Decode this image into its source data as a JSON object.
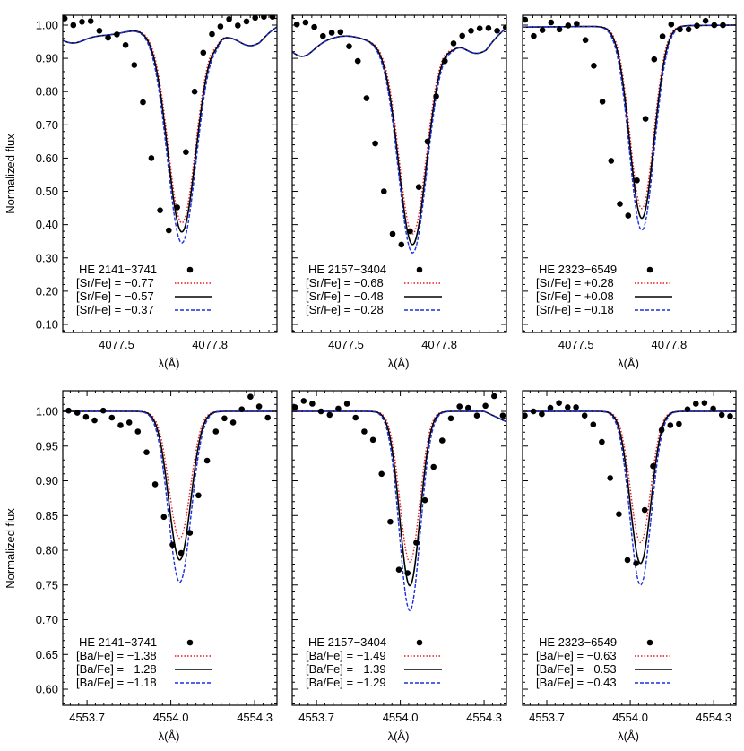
{
  "figure": {
    "ylabel": "Normalized flux",
    "xlabel": "λ(Å)",
    "rows": 2,
    "cols": 3
  },
  "colors": {
    "low_model": "#e8191e",
    "best_model": "#000000",
    "high_model": "#1a2ee0",
    "observed": "#000000",
    "frame": "#000000"
  },
  "chart_data": [
    {
      "type": "line",
      "panel": "top-left",
      "title": "",
      "xlabel": "λ(Å)",
      "ylabel": "Normalized flux",
      "xlim": [
        4077.327,
        4078.016
      ],
      "ylim": [
        0.0757,
        1.0296
      ],
      "xticks": [
        4077.5,
        4077.8
      ],
      "xtick_labels": [
        "4077.5",
        "4077.8"
      ],
      "yticks": [
        0.1,
        0.2,
        0.3,
        0.4,
        0.5,
        0.6,
        0.7,
        0.8,
        0.9,
        1.0
      ],
      "ytick_labels": [
        "0.10",
        "0.20",
        "0.30",
        "0.40",
        "0.50",
        "0.60",
        "0.70",
        "0.80",
        "0.90",
        "1.00"
      ],
      "line": {
        "center": 4077.71,
        "sigma": 0.066,
        "continuum": "sr1"
      },
      "legend": {
        "star": "HE 2141−3741",
        "entries": [
          "[Sr/Fe] = −0.77",
          "[Sr/Fe] = −0.57",
          "[Sr/Fe] = −0.37"
        ]
      },
      "series": [
        {
          "name": "[Sr/Fe] = −0.77",
          "style": "dotted",
          "color": "#e8191e",
          "min_flux": 0.405
        },
        {
          "name": "[Sr/Fe] = −0.57",
          "style": "solid",
          "color": "#000000",
          "min_flux": 0.378
        },
        {
          "name": "[Sr/Fe] = −0.37",
          "style": "dashed",
          "color": "#1a2ee0",
          "min_flux": 0.345
        }
      ],
      "observed": {
        "name": "HE 2141−3741",
        "x": [
          4077.333,
          4077.361,
          4077.389,
          4077.417,
          4077.445,
          4077.473,
          4077.501,
          4077.529,
          4077.557,
          4077.585,
          4077.612,
          4077.64,
          4077.668,
          4077.695,
          4077.723,
          4077.751,
          4077.779,
          4077.807,
          4077.834,
          4077.862,
          4077.89,
          4077.918,
          4077.946,
          4077.974,
          4078.002
        ],
        "y": [
          1.02,
          1.0,
          1.01,
          1.012,
          0.983,
          0.962,
          0.972,
          0.94,
          0.88,
          0.768,
          0.6,
          0.443,
          0.383,
          0.452,
          0.618,
          0.8,
          0.917,
          0.973,
          0.996,
          1.018,
          0.999,
          1.011,
          1.022,
          1.025,
          1.025
        ]
      }
    },
    {
      "type": "line",
      "panel": "top-middle",
      "title": "",
      "xlabel": "λ(Å)",
      "ylabel": "",
      "xlim": [
        4077.327,
        4078.016
      ],
      "ylim": [
        0.0757,
        1.0296
      ],
      "xticks": [
        4077.5,
        4077.8
      ],
      "xtick_labels": [
        "4077.5",
        "4077.8"
      ],
      "yticks": [
        0.1,
        0.2,
        0.3,
        0.4,
        0.5,
        0.6,
        0.7,
        0.8,
        0.9,
        1.0
      ],
      "line": {
        "center": 4077.714,
        "sigma": 0.066,
        "continuum": "sr2"
      },
      "legend": {
        "star": "HE 2157−3404",
        "entries": [
          "[Sr/Fe] = −0.68",
          "[Sr/Fe] = −0.48",
          "[Sr/Fe] = −0.28"
        ]
      },
      "series": [
        {
          "name": "[Sr/Fe] = −0.68",
          "style": "dotted",
          "color": "#e8191e",
          "min_flux": 0.372
        },
        {
          "name": "[Sr/Fe] = −0.48",
          "style": "solid",
          "color": "#000000",
          "min_flux": 0.34
        },
        {
          "name": "[Sr/Fe] = −0.28",
          "style": "dashed",
          "color": "#1a2ee0",
          "min_flux": 0.315
        }
      ],
      "observed": {
        "name": "HE 2157−3404",
        "x": [
          4077.342,
          4077.37,
          4077.398,
          4077.426,
          4077.454,
          4077.482,
          4077.51,
          4077.538,
          4077.566,
          4077.594,
          4077.622,
          4077.65,
          4077.678,
          4077.706,
          4077.734,
          4077.762,
          4077.79,
          4077.818,
          4077.846,
          4077.874,
          4077.902,
          4077.93,
          4077.958,
          4077.986,
          4078.014
        ],
        "y": [
          1.002,
          1.008,
          0.994,
          0.967,
          0.977,
          0.979,
          0.936,
          0.892,
          0.78,
          0.644,
          0.5,
          0.372,
          0.34,
          0.38,
          0.513,
          0.65,
          0.786,
          0.892,
          0.945,
          0.968,
          0.983,
          0.99,
          0.991,
          0.983,
          0.993
        ]
      }
    },
    {
      "type": "line",
      "panel": "top-right",
      "title": "",
      "xlabel": "λ(Å)",
      "ylabel": "",
      "xlim": [
        4077.327,
        4078.016
      ],
      "ylim": [
        0.0757,
        1.0296
      ],
      "xticks": [
        4077.5,
        4077.8
      ],
      "xtick_labels": [
        "4077.5",
        "4077.8"
      ],
      "yticks": [
        0.1,
        0.2,
        0.3,
        0.4,
        0.5,
        0.6,
        0.7,
        0.8,
        0.9,
        1.0
      ],
      "line": {
        "center": 4077.712,
        "sigma": 0.058,
        "continuum": "flat"
      },
      "legend": {
        "star": "HE 2323−6549",
        "entries": [
          "[Sr/Fe] = +0.28",
          "[Sr/Fe] = +0.08",
          "[Sr/Fe] = −0.18"
        ]
      },
      "series": [
        {
          "name": "[Sr/Fe] = +0.28",
          "style": "dotted",
          "color": "#e8191e",
          "min_flux": 0.448
        },
        {
          "name": "[Sr/Fe] = +0.08",
          "style": "solid",
          "color": "#000000",
          "min_flux": 0.419
        },
        {
          "name": "[Sr/Fe] = −0.18",
          "style": "dashed",
          "color": "#1a2ee0",
          "min_flux": 0.383
        }
      ],
      "observed": {
        "name": "HE 2323−6549",
        "x": [
          4077.335,
          4077.363,
          4077.391,
          4077.419,
          4077.446,
          4077.474,
          4077.502,
          4077.53,
          4077.557,
          4077.585,
          4077.613,
          4077.641,
          4077.668,
          4077.696,
          4077.724,
          4077.752,
          4077.779,
          4077.807,
          4077.835,
          4077.863,
          4077.89,
          4077.918,
          4077.946,
          4077.974
        ],
        "y": [
          1.016,
          0.967,
          0.985,
          1.008,
          0.987,
          0.999,
          1.004,
          0.955,
          0.878,
          0.77,
          0.592,
          0.462,
          0.427,
          0.533,
          0.718,
          0.897,
          0.966,
          1.002,
          0.987,
          0.987,
          0.998,
          1.013,
          1.0,
          1.0
        ]
      }
    },
    {
      "type": "line",
      "panel": "bottom-left",
      "title": "",
      "xlabel": "λ(Å)",
      "ylabel": "Normalized flux",
      "xlim": [
        4553.613,
        4554.38
      ],
      "ylim": [
        0.5768,
        1.0297
      ],
      "xticks": [
        4553.7,
        4554.0,
        4554.3
      ],
      "xtick_labels": [
        "4553.7",
        "4554.0",
        "4554.3"
      ],
      "yticks": [
        0.6,
        0.65,
        0.7,
        0.75,
        0.8,
        0.85,
        0.9,
        0.95,
        1.0
      ],
      "ytick_labels": [
        "0.60",
        "0.65",
        "0.70",
        "0.75",
        "0.80",
        "0.85",
        "0.90",
        "0.95",
        "1.00"
      ],
      "line": {
        "center": 4554.032,
        "sigma": 0.058,
        "continuum": "flat"
      },
      "legend": {
        "star": "HE 2141−3741",
        "entries": [
          "[Ba/Fe] = −1.38",
          "[Ba/Fe] = −1.28",
          "[Ba/Fe] = −1.18"
        ]
      },
      "series": [
        {
          "name": "[Ba/Fe] = −1.38",
          "style": "dotted",
          "color": "#e8191e",
          "min_flux": 0.817
        },
        {
          "name": "[Ba/Fe] = −1.28",
          "style": "solid",
          "color": "#000000",
          "min_flux": 0.786
        },
        {
          "name": "[Ba/Fe] = −1.18",
          "style": "dashed",
          "color": "#1a2ee0",
          "min_flux": 0.754
        }
      ],
      "observed": {
        "name": "HE 2141−3741",
        "x": [
          4553.634,
          4553.665,
          4553.696,
          4553.727,
          4553.758,
          4553.789,
          4553.82,
          4553.851,
          4553.882,
          4553.913,
          4553.944,
          4553.975,
          4554.006,
          4554.037,
          4554.068,
          4554.099,
          4554.13,
          4554.161,
          4554.192,
          4554.223,
          4554.254,
          4554.285,
          4554.316,
          4554.347
        ],
        "y": [
          1.001,
          0.998,
          0.992,
          0.987,
          1.001,
          0.991,
          0.98,
          0.984,
          0.971,
          0.941,
          0.895,
          0.848,
          0.808,
          0.796,
          0.825,
          0.879,
          0.929,
          0.971,
          0.99,
          0.984,
          1.003,
          1.021,
          1.007,
          0.991
        ]
      }
    },
    {
      "type": "line",
      "panel": "bottom-middle",
      "title": "",
      "xlabel": "λ(Å)",
      "ylabel": "",
      "xlim": [
        4553.613,
        4554.38
      ],
      "ylim": [
        0.5768,
        1.0297
      ],
      "xticks": [
        4553.7,
        4554.0,
        4554.3
      ],
      "xtick_labels": [
        "4553.7",
        "4554.0",
        "4554.3"
      ],
      "yticks": [
        0.6,
        0.65,
        0.7,
        0.75,
        0.8,
        0.85,
        0.9,
        0.95,
        1.0
      ],
      "line": {
        "center": 4554.034,
        "sigma": 0.054,
        "continuum": "ba2"
      },
      "legend": {
        "star": "HE 2157−3404",
        "entries": [
          "[Ba/Fe] = −1.49",
          "[Ba/Fe] = −1.39",
          "[Ba/Fe] = −1.29"
        ]
      },
      "series": [
        {
          "name": "[Ba/Fe] = −1.49",
          "style": "dotted",
          "color": "#e8191e",
          "min_flux": 0.783
        },
        {
          "name": "[Ba/Fe] = −1.39",
          "style": "solid",
          "color": "#000000",
          "min_flux": 0.749
        },
        {
          "name": "[Ba/Fe] = −1.29",
          "style": "dashed",
          "color": "#1a2ee0",
          "min_flux": 0.713
        }
      ],
      "observed": {
        "name": "HE 2157−3404",
        "x": [
          4553.623,
          4553.654,
          4553.685,
          4553.716,
          4553.747,
          4553.778,
          4553.809,
          4553.84,
          4553.871,
          4553.902,
          4553.933,
          4553.964,
          4553.995,
          4554.026,
          4554.057,
          4554.088,
          4554.119,
          4554.15,
          4554.181,
          4554.212,
          4554.243,
          4554.274,
          4554.305,
          4554.336,
          4554.367
        ],
        "y": [
          1.006,
          1.015,
          1.011,
          1.0,
          0.995,
          1.004,
          1.011,
          0.991,
          0.971,
          0.959,
          0.91,
          0.841,
          0.772,
          0.767,
          0.811,
          0.872,
          0.92,
          0.958,
          0.99,
          1.007,
          1.005,
          0.994,
          1.008,
          1.022,
          0.994
        ]
      }
    },
    {
      "type": "line",
      "panel": "bottom-right",
      "title": "",
      "xlabel": "λ(Å)",
      "ylabel": "",
      "xlim": [
        4553.613,
        4554.38
      ],
      "ylim": [
        0.5768,
        1.0297
      ],
      "xticks": [
        4553.7,
        4554.0,
        4554.3
      ],
      "xtick_labels": [
        "4553.7",
        "4554.0",
        "4554.3"
      ],
      "yticks": [
        0.6,
        0.65,
        0.7,
        0.75,
        0.8,
        0.85,
        0.9,
        0.95,
        1.0
      ],
      "line": {
        "center": 4554.037,
        "sigma": 0.055,
        "continuum": "flat"
      },
      "legend": {
        "star": "HE 2323−6549",
        "entries": [
          "[Ba/Fe] = −0.63",
          "[Ba/Fe] = −0.53",
          "[Ba/Fe] = −0.43"
        ]
      },
      "series": [
        {
          "name": "[Ba/Fe] = −0.63",
          "style": "dotted",
          "color": "#e8191e",
          "min_flux": 0.811
        },
        {
          "name": "[Ba/Fe] = −0.53",
          "style": "solid",
          "color": "#000000",
          "min_flux": 0.781
        },
        {
          "name": "[Ba/Fe] = −0.43",
          "style": "dashed",
          "color": "#1a2ee0",
          "min_flux": 0.75
        }
      ],
      "observed": {
        "name": "HE 2323−6549",
        "x": [
          4553.621,
          4553.652,
          4553.682,
          4553.713,
          4553.744,
          4553.775,
          4553.805,
          4553.836,
          4553.867,
          4553.898,
          4553.928,
          4553.959,
          4553.99,
          4554.021,
          4554.052,
          4554.082,
          4554.113,
          4554.144,
          4554.175,
          4554.206,
          4554.236,
          4554.267,
          4554.298,
          4554.329,
          4554.359
        ],
        "y": [
          0.994,
          1.0,
          0.996,
          1.005,
          1.012,
          1.006,
          1.006,
          0.994,
          0.981,
          0.956,
          0.904,
          0.852,
          0.786,
          0.781,
          0.858,
          0.921,
          0.973,
          0.98,
          0.982,
          1.003,
          1.011,
          1.012,
          1.004,
          0.995,
          0.993
        ]
      }
    }
  ]
}
